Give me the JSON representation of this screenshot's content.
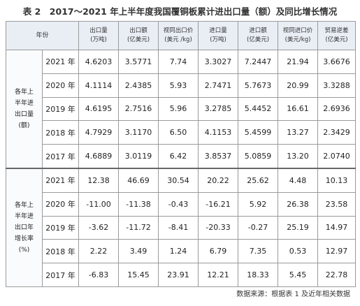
{
  "title": "表 2　2017～2021 年上半年度我国覆铜板累计进出口量（额）及同比增长情况",
  "header": {
    "year_col": "年份",
    "columns": [
      "出口量\n(万吨)",
      "出口额\n(亿美元)",
      "视同出口价\n(美元 /kg)",
      "进口量\n(万吨)",
      "进口额\n(亿美元)",
      "视同进口价\n(美元/kg)",
      "贸易逆差\n(亿美元)"
    ]
  },
  "sections": [
    {
      "label": "各年上\n半年进\n出口量\n(额)",
      "rows": [
        {
          "year": "2021 年",
          "values": [
            "4.6203",
            "3.5771",
            "7.74",
            "3.3027",
            "7.2447",
            "21.94",
            "3.6676"
          ]
        },
        {
          "year": "2020 年",
          "values": [
            "4.1114",
            "2.4385",
            "5.93",
            "2.7471",
            "5.7673",
            "20.99",
            "3.3288"
          ]
        },
        {
          "year": "2019 年",
          "values": [
            "4.6195",
            "2.7516",
            "5.96",
            "3.2785",
            "5.4452",
            "16.61",
            "2.6936"
          ]
        },
        {
          "year": "2018 年",
          "values": [
            "4.7929",
            "3.1170",
            "6.50",
            "4.1153",
            "5.4599",
            "13.27",
            "2.3429"
          ]
        },
        {
          "year": "2017 年",
          "values": [
            "4.6889",
            "3.0119",
            "6.42",
            "3.8537",
            "5.0859",
            "13.20",
            "2.0740"
          ]
        }
      ]
    },
    {
      "label": "各年上\n半年进\n出口年\n增长率\n(%)",
      "rows": [
        {
          "year": "2021 年",
          "values": [
            "12.38",
            "46.69",
            "30.54",
            "20.22",
            "25.62",
            "4.48",
            "10.13"
          ]
        },
        {
          "year": "2020 年",
          "values": [
            "-11.00",
            "-11.38",
            "-0.43",
            "-16.21",
            "5.92",
            "26.38",
            "23.58"
          ]
        },
        {
          "year": "2019 年",
          "values": [
            "-3.62",
            "-11.72",
            "-8.41",
            "-20.33",
            "-0.27",
            "25.19",
            "14.97"
          ]
        },
        {
          "year": "2018 年",
          "values": [
            "2.22",
            "3.49",
            "1.24",
            "6.79",
            "7.35",
            "0.53",
            "12.97"
          ]
        },
        {
          "year": "2017 年",
          "values": [
            "-6.83",
            "15.45",
            "23.91",
            "12.21",
            "18.33",
            "5.45",
            "22.78"
          ]
        }
      ]
    }
  ],
  "source": "数据来源：根据表 1 及近年相关数据"
}
